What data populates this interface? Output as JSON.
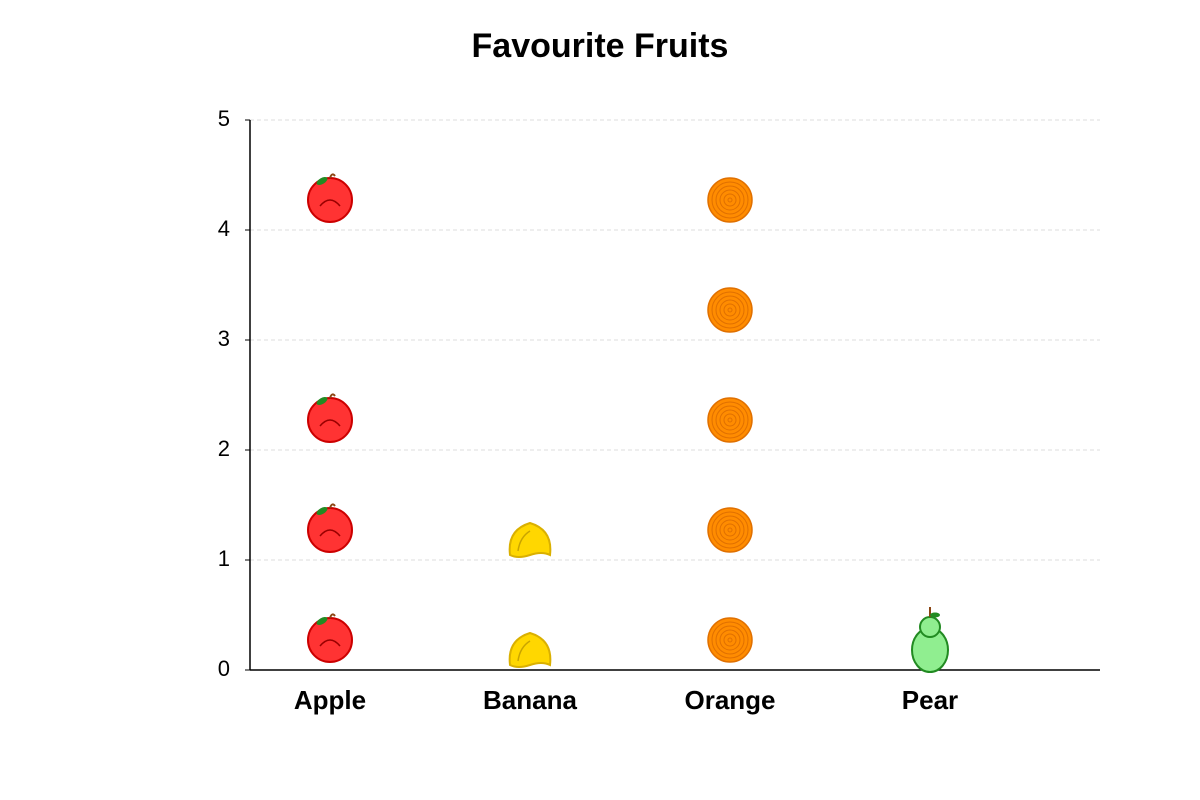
{
  "chart_data": {
    "type": "pictograph",
    "title": "Favourite Fruits",
    "categories": [
      "Apple",
      "Banana",
      "Orange",
      "Pear"
    ],
    "icon_positions": [
      [
        0,
        1,
        2,
        4
      ],
      [
        0,
        1
      ],
      [
        0,
        1,
        2,
        3,
        4
      ],
      [
        0
      ]
    ],
    "colors": [
      "#ff3333",
      "#ffd700",
      "#ff8c00",
      "#90ee90"
    ],
    "ylim": [
      0,
      5
    ],
    "yticks": [
      0,
      1,
      2,
      3,
      4,
      5
    ],
    "grid": true
  }
}
